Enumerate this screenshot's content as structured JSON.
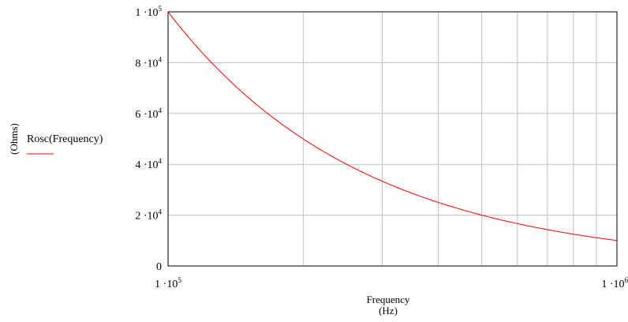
{
  "chart_data": {
    "type": "line",
    "title": "",
    "xlabel": "Frequency",
    "xunit": "(Hz)",
    "ylabel": "(Ohms)",
    "xscale": "log",
    "xlim": [
      100000,
      1000000
    ],
    "ylim": [
      0,
      100000
    ],
    "grid": true,
    "legend_position": "left",
    "colors": {
      "series": "#ff0000",
      "grid": "#c0c0c0",
      "frame": "#000000"
    },
    "x_ticks": [
      {
        "mant": "1",
        "exp": "5"
      },
      {
        "mant": "1",
        "exp": "6"
      }
    ],
    "y_ticks": [
      {
        "value": 0,
        "mant": "0",
        "exp": ""
      },
      {
        "value": 20000,
        "mant": "2",
        "exp": "4"
      },
      {
        "value": 40000,
        "mant": "4",
        "exp": "4"
      },
      {
        "value": 60000,
        "mant": "6",
        "exp": "4"
      },
      {
        "value": 80000,
        "mant": "8",
        "exp": "4"
      },
      {
        "value": 100000,
        "mant": "1",
        "exp": "5"
      }
    ],
    "series": [
      {
        "name": "Rosc(Frequency)",
        "color": "#ff0000",
        "x": [
          100000,
          150000,
          200000,
          300000,
          400000,
          500000,
          600000,
          700000,
          800000,
          900000,
          1000000
        ],
        "values": [
          100000,
          66700,
          50000,
          33300,
          25000,
          20000,
          16700,
          14300,
          12500,
          11100,
          10000
        ]
      }
    ]
  }
}
